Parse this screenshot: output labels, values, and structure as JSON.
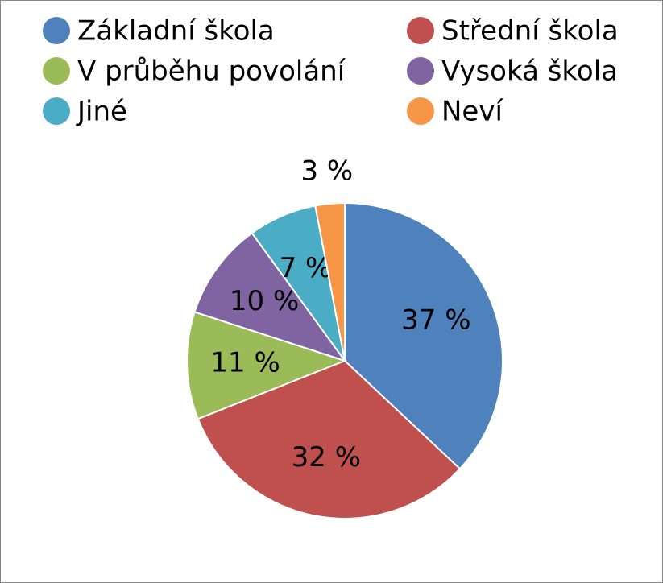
{
  "chart_data": {
    "type": "pie",
    "categories": [
      "Základní škola",
      "Střední škola",
      "V průběhu povolání",
      "Vysoká škola",
      "Jiné",
      "Neví"
    ],
    "values": [
      37,
      32,
      11,
      10,
      7,
      3
    ],
    "value_labels": [
      "37 %",
      "32 %",
      "11 %",
      "10 %",
      "7 %",
      "3 %"
    ],
    "colors": [
      "#4f81bd",
      "#c0504d",
      "#9bbb59",
      "#8064a2",
      "#4bacc6",
      "#f79646"
    ],
    "legend": "top"
  }
}
